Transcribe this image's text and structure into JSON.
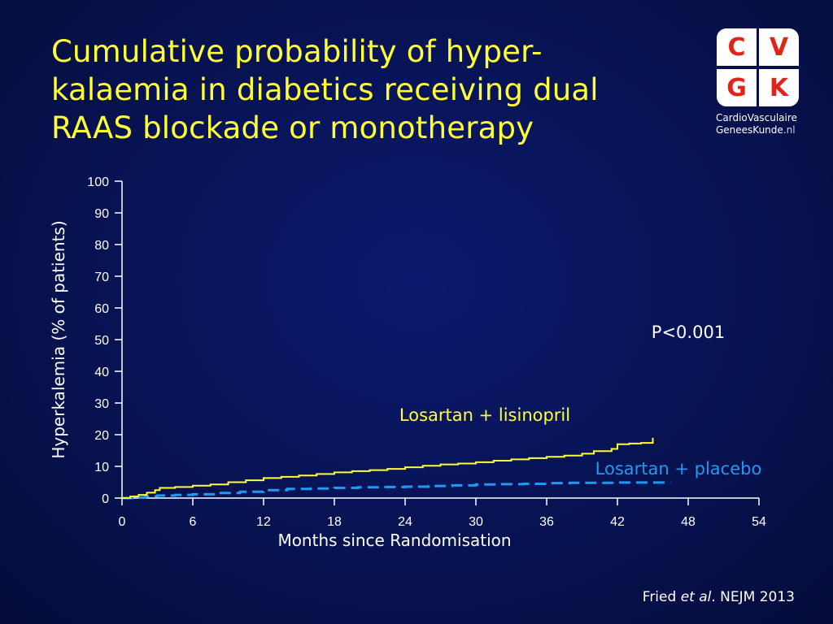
{
  "slide": {
    "title": "Cumulative probability of hyper-kalaemia in diabetics receiving dual RAAS blockade or monotherapy",
    "title_lines": [
      "Cumulative probability of hyper-",
      "kalaemia in diabetics receiving dual",
      "RAAS blockade or monotherapy"
    ],
    "citation_prefix": "Fried ",
    "citation_italic": "et al",
    "citation_suffix": ". NEJM 2013"
  },
  "logo": {
    "letters": [
      "C",
      "V",
      "G",
      "K"
    ],
    "line1": "CardioVasculaire",
    "line2_main": "GeneesKunde",
    "line2_suffix": ".nl",
    "letter_color": "#e2231a"
  },
  "colors": {
    "background": "#081458",
    "title": "#ffff33",
    "series_combo": "#ffff33",
    "series_mono": "#1e9bf0",
    "axis": "#ffffff"
  },
  "chart_data": {
    "type": "line",
    "title": "",
    "xlabel": "Months since Randomisation",
    "ylabel": "Hyperkalemia (% of patients)",
    "xlim": [
      0,
      54
    ],
    "ylim": [
      0,
      100
    ],
    "xticks": [
      0,
      6,
      12,
      18,
      24,
      30,
      36,
      42,
      48,
      54
    ],
    "yticks": [
      0,
      10,
      20,
      30,
      40,
      50,
      60,
      70,
      80,
      90,
      100
    ],
    "grid": false,
    "annotation": "P<0.001",
    "series": [
      {
        "name": "Losartan + lisinopril",
        "style": "solid-step",
        "x": [
          0,
          0.7,
          1.4,
          2.1,
          2.8,
          3.2,
          4.5,
          6,
          7.5,
          9,
          10.5,
          12,
          13.5,
          15,
          16.5,
          18,
          19.5,
          21,
          22.5,
          24,
          25.5,
          27,
          28.5,
          30,
          31.5,
          33,
          34.5,
          36,
          37.5,
          39,
          40,
          41.5,
          42,
          43,
          44,
          45
        ],
        "y": [
          0,
          0.5,
          1.0,
          1.7,
          2.5,
          3.2,
          3.5,
          3.9,
          4.3,
          5.0,
          5.6,
          6.3,
          6.7,
          7.1,
          7.6,
          8.1,
          8.5,
          8.8,
          9.2,
          9.7,
          10.2,
          10.6,
          10.9,
          11.3,
          11.8,
          12.2,
          12.6,
          13.0,
          13.4,
          14.0,
          14.8,
          15.5,
          17.0,
          17.2,
          17.4,
          19.0
        ]
      },
      {
        "name": "Losartan + placebo",
        "style": "dashed-step",
        "x": [
          0,
          1,
          2,
          3,
          4.5,
          6,
          8,
          10,
          12,
          14,
          16,
          18,
          20,
          22,
          24,
          26,
          28,
          30,
          32,
          34,
          36,
          38,
          40,
          42,
          44,
          46.5
        ],
        "y": [
          0,
          0.2,
          0.5,
          0.8,
          1.0,
          1.2,
          1.6,
          2.0,
          2.5,
          2.9,
          3.0,
          3.2,
          3.4,
          3.5,
          3.6,
          3.8,
          4.0,
          4.3,
          4.4,
          4.5,
          4.7,
          4.8,
          4.8,
          4.9,
          4.9,
          4.9
        ]
      }
    ]
  }
}
